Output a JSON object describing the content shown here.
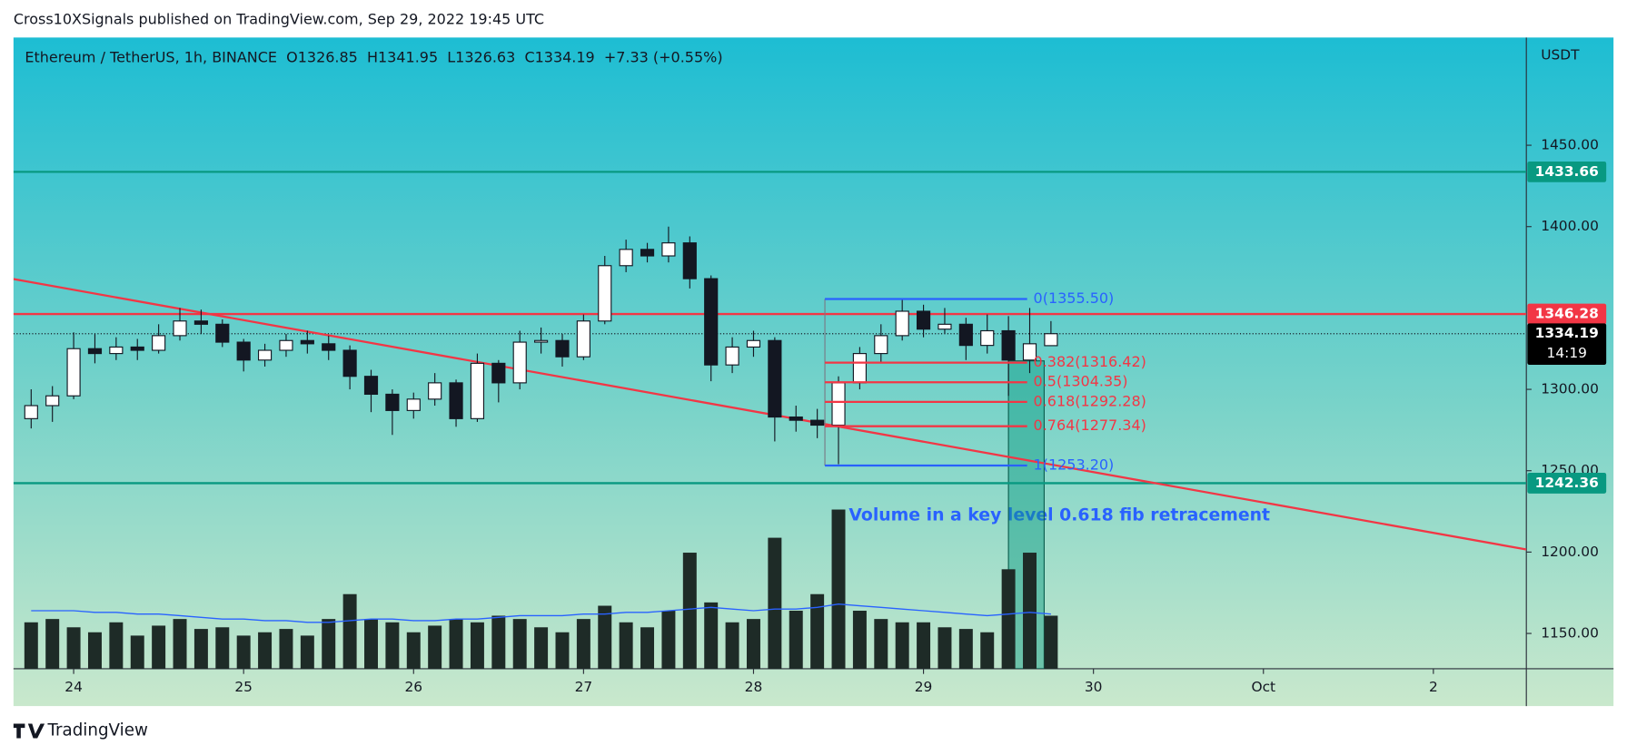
{
  "chart_data": {
    "type": "candlestick",
    "publisher": "Cross10XSignals published on TradingView.com, Sep 29, 2022 19:45 UTC",
    "legend_text": "Ethereum / TetherUS, 1h, BINANCE  O1326.85  H1341.95  L1326.63  C1334.19  +7.33 (+0.55%)",
    "y_axis_label": "USDT",
    "brand": "TradingView",
    "annotation": "Volume in a key level 0.618 fib retracement",
    "x": [
      23.75,
      23.875,
      24,
      24.125,
      24.25,
      24.375,
      24.5,
      24.625,
      24.75,
      24.875,
      25,
      25.125,
      25.25,
      25.375,
      25.5,
      25.625,
      25.75,
      25.875,
      26,
      26.125,
      26.25,
      26.375,
      26.5,
      26.625,
      26.75,
      26.875,
      27,
      27.125,
      27.25,
      27.375,
      27.5,
      27.625,
      27.75,
      27.875,
      28,
      28.125,
      28.25,
      28.375,
      28.5,
      28.625,
      28.75,
      28.875,
      29,
      29.125,
      29.25,
      29.375,
      29.5,
      29.625,
      29.75
    ],
    "open": [
      1282,
      1290,
      1296,
      1325,
      1322,
      1326,
      1324,
      1333,
      1342,
      1340,
      1329,
      1318,
      1324,
      1330,
      1328,
      1324,
      1308,
      1297,
      1287,
      1294,
      1304,
      1282,
      1316,
      1304,
      1329,
      1330,
      1320,
      1342,
      1376,
      1386,
      1382,
      1390,
      1368,
      1315,
      1326,
      1330,
      1283,
      1281,
      1278,
      1304,
      1322,
      1333,
      1348,
      1337,
      1340,
      1327,
      1336,
      1318,
      1326.85
    ],
    "high": [
      1300,
      1302,
      1335,
      1334,
      1332,
      1331,
      1340,
      1350,
      1349,
      1343,
      1331,
      1328,
      1334,
      1336,
      1333,
      1327,
      1312,
      1300,
      1298,
      1310,
      1306,
      1322,
      1318,
      1336,
      1338,
      1334,
      1346,
      1382,
      1392,
      1390,
      1400,
      1394,
      1370,
      1332,
      1336,
      1332,
      1290,
      1288,
      1308,
      1326,
      1340,
      1355,
      1352,
      1350,
      1344,
      1346,
      1345,
      1350,
      1341.95
    ],
    "low": [
      1276,
      1280,
      1294,
      1316,
      1318,
      1318,
      1322,
      1330,
      1334,
      1326,
      1311,
      1314,
      1320,
      1322,
      1318,
      1300,
      1286,
      1272,
      1282,
      1290,
      1277,
      1280,
      1292,
      1300,
      1322,
      1314,
      1318,
      1340,
      1372,
      1378,
      1378,
      1362,
      1305,
      1310,
      1320,
      1268,
      1274,
      1270,
      1254,
      1300,
      1316,
      1330,
      1332,
      1334,
      1318,
      1322,
      1296,
      1310,
      1326.63
    ],
    "close": [
      1290,
      1296,
      1325,
      1322,
      1326,
      1324,
      1333,
      1342,
      1340,
      1329,
      1318,
      1324,
      1330,
      1328,
      1324,
      1308,
      1297,
      1287,
      1294,
      1304,
      1282,
      1316,
      1304,
      1329,
      1330,
      1320,
      1342,
      1376,
      1386,
      1382,
      1390,
      1368,
      1315,
      1326,
      1330,
      1283,
      1281,
      1278,
      1304,
      1322,
      1333,
      1348,
      1337,
      1340,
      1327,
      1336,
      1318,
      1328,
      1334.19
    ],
    "volume": [
      28,
      30,
      25,
      22,
      28,
      20,
      26,
      30,
      24,
      25,
      20,
      22,
      24,
      20,
      30,
      45,
      30,
      28,
      22,
      26,
      30,
      28,
      32,
      30,
      25,
      22,
      30,
      38,
      28,
      25,
      35,
      70,
      40,
      28,
      30,
      79,
      35,
      45,
      96,
      35,
      30,
      28,
      28,
      25,
      24,
      22,
      60,
      70,
      32
    ],
    "volume_ma": [
      35,
      35,
      35,
      34,
      34,
      33,
      33,
      32,
      31,
      30,
      30,
      29,
      29,
      28,
      28,
      29,
      30,
      30,
      29,
      29,
      30,
      30,
      31,
      32,
      32,
      32,
      33,
      33,
      34,
      34,
      35,
      36,
      37,
      36,
      35,
      36,
      36,
      37,
      39,
      38,
      37,
      36,
      35,
      34,
      33,
      32,
      33,
      34,
      33
    ],
    "vlim": [
      0,
      100
    ],
    "up_color": "#ffffff",
    "down_color": "#131722",
    "volume_color": "#1e2b27",
    "volume_ma_color": "#2962ff",
    "xlim": [
      23.646,
      32.547
    ],
    "xticks": [
      24,
      25,
      26,
      27,
      28,
      29,
      30,
      {
        "value": 31,
        "label": "Oct"
      },
      {
        "value": 32,
        "label": "2"
      }
    ],
    "ylim": [
      1128.3,
      1516.2
    ],
    "yticks": [
      {
        "value": 1150,
        "label": "1150.00"
      },
      {
        "value": 1200,
        "label": "1200.00"
      },
      {
        "value": 1250,
        "label": "1250.00"
      },
      {
        "value": 1300,
        "label": "1300.00"
      },
      {
        "value": 1400,
        "label": "1400.00"
      },
      {
        "value": 1450,
        "label": "1450.00"
      }
    ],
    "levels": [
      {
        "price": 1433.66,
        "color": "#089981"
      },
      {
        "price": 1346.28,
        "color": "#f23645"
      },
      {
        "price": 1242.36,
        "color": "#089981"
      }
    ],
    "last_price": 1334.19,
    "countdown": "14:19",
    "trendline": {
      "x": [
        23.646,
        32.547
      ],
      "y": [
        1367.8,
        1201.6
      ],
      "color": "#f23645"
    },
    "fib": {
      "x": [
        28.42,
        29.61
      ],
      "levels": [
        {
          "label": "0(1355.50)",
          "price": 1355.5,
          "color": "#2962ff"
        },
        {
          "label": "0.382(1316.42)",
          "price": 1316.42,
          "color": "#f23645"
        },
        {
          "label": "0.5(1304.35)",
          "price": 1304.35,
          "color": "#f23645"
        },
        {
          "label": "0.618(1292.28)",
          "price": 1292.28,
          "color": "#f23645"
        },
        {
          "label": "0.764(1277.34)",
          "price": 1277.34,
          "color": "#f23645"
        },
        {
          "label": "1(1253.20)",
          "price": 1253.2,
          "color": "#2962ff"
        }
      ]
    },
    "highlight": {
      "x": [
        29.5,
        29.71
      ],
      "y_top": 1317.5,
      "color": "#089981"
    }
  }
}
